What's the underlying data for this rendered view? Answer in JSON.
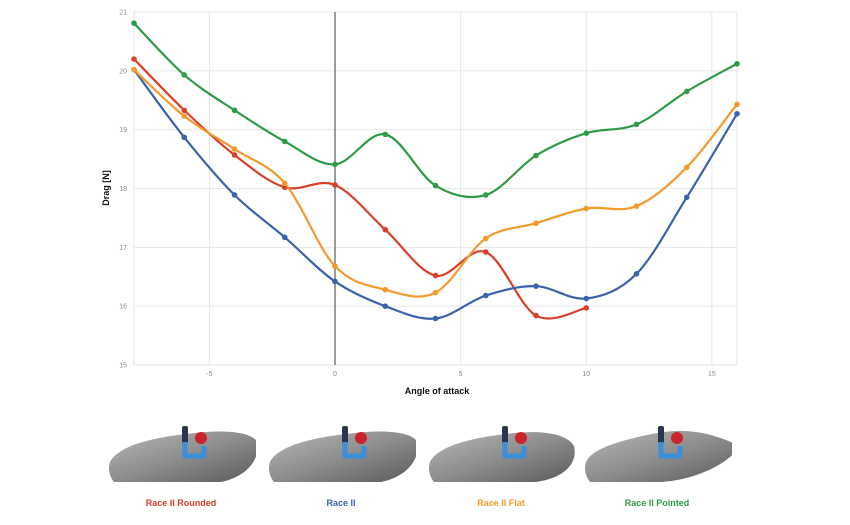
{
  "chart_data": {
    "type": "line",
    "xlabel": "Angle of attack",
    "ylabel": "Drag [N]",
    "xlim": [
      -8,
      16
    ],
    "ylim": [
      15,
      21
    ],
    "x_ticks": [
      "-5",
      "0",
      "5",
      "10",
      "15"
    ],
    "y_ticks": [
      "15",
      "16",
      "17",
      "18",
      "19",
      "20",
      "21"
    ],
    "grid": true,
    "vertical_reference_line_at_x": 0,
    "series": [
      {
        "name": "Race II Rounded",
        "color": "#d9402b",
        "x": [
          -8,
          -6,
          -4,
          -2,
          0,
          2,
          4,
          6,
          8,
          10
        ],
        "y": [
          20.2,
          19.33,
          18.57,
          18.02,
          18.06,
          17.3,
          16.52,
          16.92,
          15.84,
          15.97
        ]
      },
      {
        "name": "Race II",
        "color": "#3b63ad",
        "x": [
          -8,
          -6,
          -4,
          -2,
          0,
          2,
          4,
          6,
          8,
          10,
          12,
          14,
          16
        ],
        "y": [
          20.02,
          18.87,
          17.89,
          17.17,
          16.42,
          16.0,
          15.79,
          16.18,
          16.34,
          16.13,
          16.55,
          17.85,
          19.27
        ]
      },
      {
        "name": "Race II Flat",
        "color": "#f39a2b",
        "x": [
          -8,
          -6,
          -4,
          -2,
          0,
          2,
          4,
          6,
          8,
          10,
          12,
          14,
          16
        ],
        "y": [
          20.02,
          19.23,
          18.67,
          18.09,
          16.68,
          16.28,
          16.23,
          17.15,
          17.41,
          17.66,
          17.7,
          18.36,
          19.43
        ]
      },
      {
        "name": "Race II Pointed",
        "color": "#2e9a48",
        "x": [
          -8,
          -6,
          -4,
          -2,
          0,
          2,
          4,
          6,
          8,
          10,
          12,
          14,
          16
        ],
        "y": [
          20.81,
          19.93,
          19.33,
          18.8,
          18.41,
          18.92,
          18.05,
          17.89,
          18.56,
          18.94,
          19.09,
          19.65,
          20.12
        ]
      }
    ]
  },
  "panels": [
    {
      "label": "Race II Rounded",
      "color": "#d9402b"
    },
    {
      "label": "Race II",
      "color": "#3b63ad"
    },
    {
      "label": "Race II Flat",
      "color": "#f39a2b"
    },
    {
      "label": "Race II Pointed",
      "color": "#2e9a48"
    }
  ]
}
